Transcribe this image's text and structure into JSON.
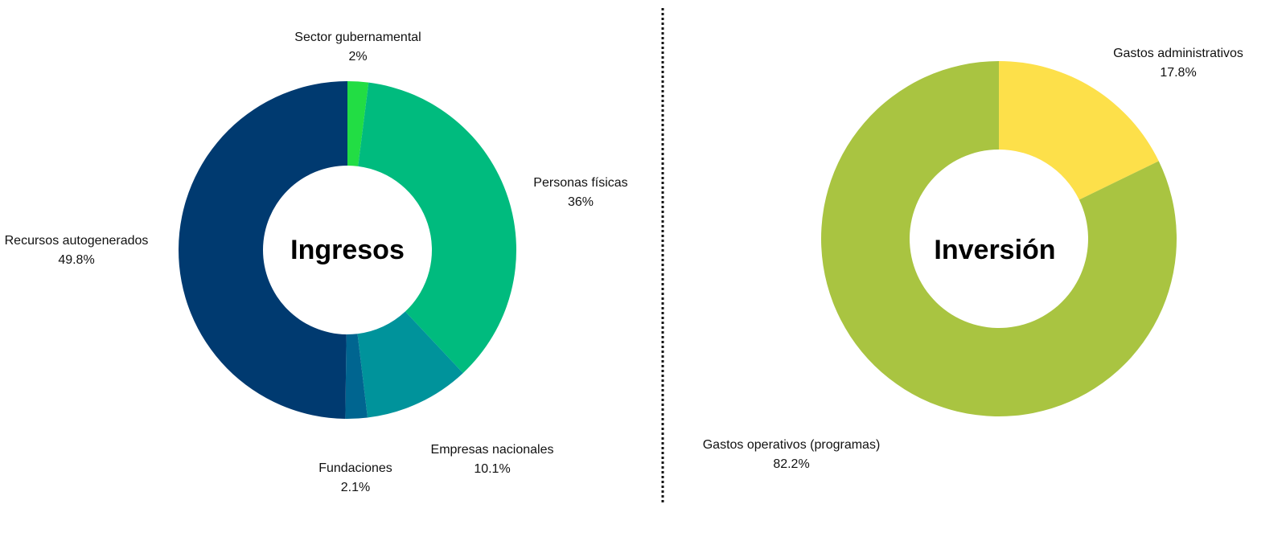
{
  "chart_data": [
    {
      "type": "pie",
      "title": "Ingresos",
      "categories": [
        "Sector gubernamental",
        "Personas físicas",
        "Empresas nacionales",
        "Fundaciones",
        "Recursos autogenerados"
      ],
      "values": [
        2,
        36,
        10.1,
        2.1,
        49.8
      ],
      "value_labels": [
        "2%",
        "36%",
        "10.1%",
        "2.1%",
        "49.8%"
      ],
      "colors": [
        "#22dd44",
        "#00bb7e",
        "#00939b",
        "#006590",
        "#003a70"
      ],
      "legend": "none"
    },
    {
      "type": "pie",
      "title": "Inversión",
      "categories": [
        "Gastos administrativos",
        "Gastos operativos (programas)"
      ],
      "values": [
        17.8,
        82.2
      ],
      "value_labels": [
        "17.8%",
        "82.2%"
      ],
      "colors": [
        "#fde04a",
        "#a9c441"
      ],
      "legend": "none"
    }
  ]
}
